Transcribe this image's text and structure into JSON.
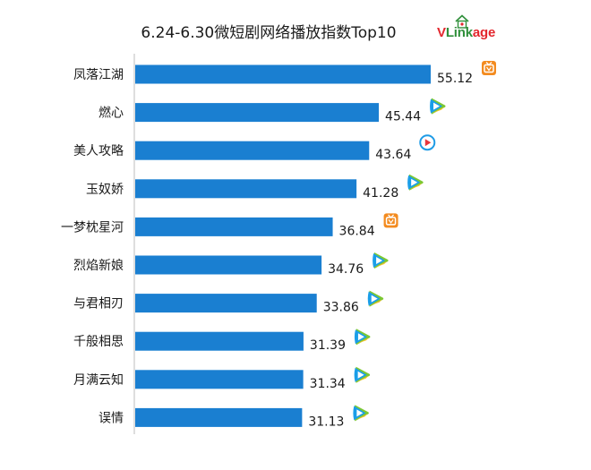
{
  "title": "6.24-6.30微短剧网络播放指数Top10",
  "logo": {
    "part1": "V",
    "part2": "Link",
    "part3": "age"
  },
  "colors": {
    "bar": "#1a7fd1",
    "axis": "#bdbdbd",
    "mango": "#f38b1f",
    "tencent_blue": "#1a9ee8",
    "tencent_green": "#7cc832",
    "tencent_yellow": "#f5c12d",
    "youku": "#1e9be6",
    "youku_red": "#e8353c"
  },
  "chart_data": {
    "type": "bar",
    "orientation": "horizontal",
    "title": "6.24-6.30微短剧网络播放指数Top10",
    "categories": [
      "凤落江湖",
      "燃心",
      "美人攻略",
      "玉奴娇",
      "一梦枕星河",
      "烈焰新娘",
      "与君相刃",
      "千般相思",
      "月满云知",
      "误情"
    ],
    "values": [
      55.12,
      45.44,
      43.64,
      41.28,
      36.84,
      34.76,
      33.86,
      31.39,
      31.34,
      31.13
    ],
    "value_labels": [
      "55.12",
      "45.44",
      "43.64",
      "41.28",
      "36.84",
      "34.76",
      "33.86",
      "31.39",
      "31.34",
      "31.13"
    ],
    "platform_icons": [
      "mango-tv-icon",
      "tencent-video-icon",
      "youku-icon",
      "tencent-video-icon",
      "mango-tv-icon",
      "tencent-video-icon",
      "tencent-video-icon",
      "tencent-video-icon",
      "tencent-video-icon",
      "tencent-video-icon"
    ],
    "xlim": [
      0,
      60
    ],
    "grid": false,
    "legend": "none"
  }
}
